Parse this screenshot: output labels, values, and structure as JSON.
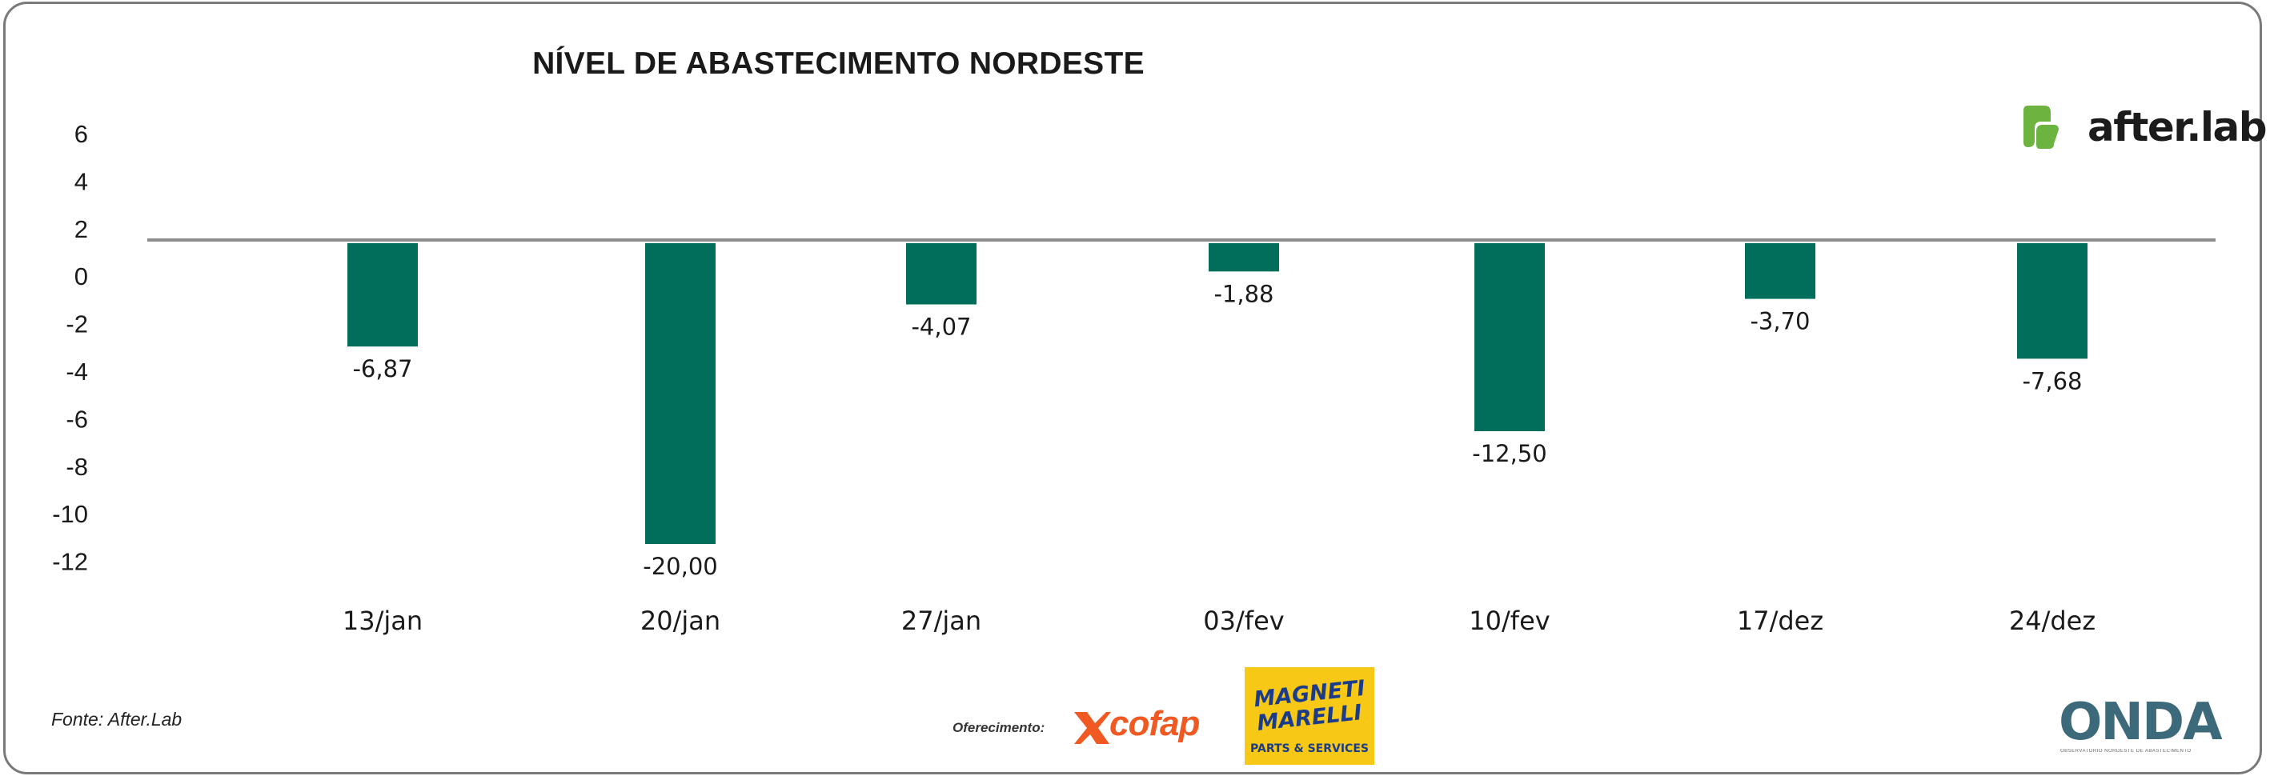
{
  "chart_data": {
    "type": "bar",
    "title": "NÍVEL DE ABASTECIMENTO NORDESTE",
    "categories": [
      "13/jan",
      "20/jan",
      "27/jan",
      "03/fev",
      "10/fev",
      "17/dez",
      "24/dez"
    ],
    "values": [
      -6.87,
      -20.0,
      -4.07,
      -1.88,
      -12.5,
      -3.7,
      -7.68
    ],
    "value_labels": [
      "-6,87",
      "-20,00",
      "-4,07",
      "-1,88",
      "-12,50",
      "-3,70",
      "-7,68"
    ],
    "yticks": [
      6,
      4,
      2,
      0,
      -2,
      -4,
      -6,
      -8,
      -10,
      -12
    ],
    "ylim": [
      -12,
      6
    ],
    "xlabel": "",
    "ylabel": "",
    "bar_color": "#006e5a",
    "baseline_color": "#8c8c8c"
  },
  "footer": {
    "source": "Fonte: After.Lab",
    "offer_label": "Oferecimento:"
  },
  "brands": {
    "afterlab": {
      "text": "after.lab",
      "color": "#6cb33f"
    },
    "cofap": {
      "text": "cofap",
      "color": "#f05a22"
    },
    "magneti": {
      "line1": "MAGNETI",
      "line2": "MARELLI",
      "line3": "PARTS & SERVICES",
      "bg": "#f7c815"
    },
    "onda": {
      "text": "ONDA",
      "subtitle": "OBSERVATÓRIO NORDESTE DE ABASTECIMENTO"
    }
  }
}
